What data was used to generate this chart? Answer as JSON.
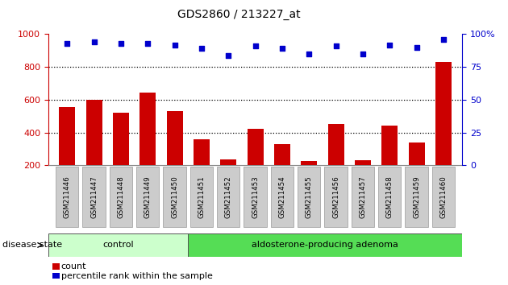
{
  "title": "GDS2860 / 213227_at",
  "categories": [
    "GSM211446",
    "GSM211447",
    "GSM211448",
    "GSM211449",
    "GSM211450",
    "GSM211451",
    "GSM211452",
    "GSM211453",
    "GSM211454",
    "GSM211455",
    "GSM211456",
    "GSM211457",
    "GSM211458",
    "GSM211459",
    "GSM211460"
  ],
  "counts": [
    555,
    600,
    520,
    645,
    530,
    360,
    235,
    425,
    330,
    225,
    450,
    230,
    440,
    340,
    830
  ],
  "percentiles": [
    93,
    94,
    93,
    93,
    92,
    89,
    84,
    91,
    89,
    85,
    91,
    85,
    92,
    90,
    96
  ],
  "left_ylim": [
    200,
    1000
  ],
  "right_ylim": [
    0,
    100
  ],
  "left_yticks": [
    200,
    400,
    600,
    800,
    1000
  ],
  "right_yticks": [
    0,
    25,
    50,
    75,
    100
  ],
  "right_yticklabels": [
    "0",
    "25",
    "50",
    "75",
    "100%"
  ],
  "bar_color": "#cc0000",
  "dot_color": "#0000cc",
  "control_label": "control",
  "adenoma_label": "aldosterone-producing adenoma",
  "control_color": "#ccffcc",
  "adenoma_color": "#55dd55",
  "disease_state_label": "disease state",
  "legend_count_label": "count",
  "legend_percentile_label": "percentile rank within the sample",
  "grid_color": "#000000",
  "tick_label_bg": "#cccccc",
  "left_axis_color": "#cc0000",
  "right_axis_color": "#0000cc",
  "n_control": 5,
  "n_total": 15
}
